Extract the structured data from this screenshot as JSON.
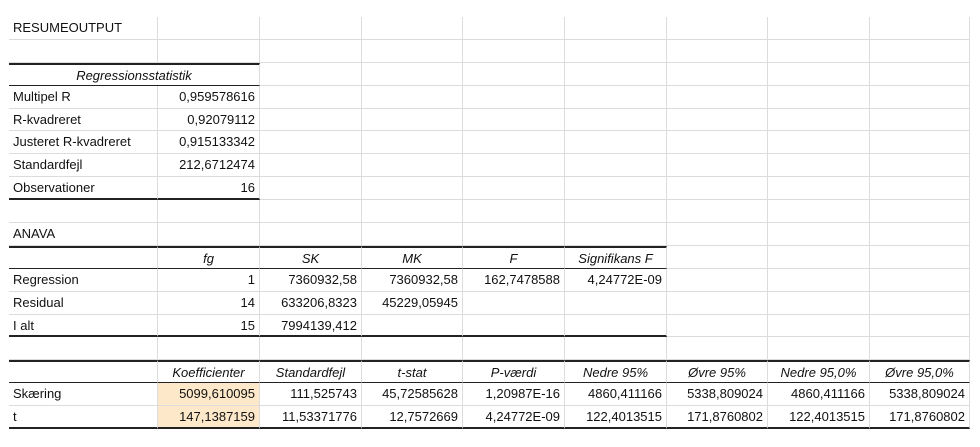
{
  "rows": [
    [
      "RESUMEOUTPUT",
      "",
      "",
      "",
      "",
      "",
      "",
      "",
      ""
    ],
    [
      "",
      "",
      "",
      "",
      "",
      "",
      "",
      "",
      ""
    ],
    [
      "Regressionsstatistik",
      "",
      "",
      "",
      "",
      "",
      "",
      "",
      ""
    ],
    [
      "Multipel R",
      "0,959578616",
      "",
      "",
      "",
      "",
      "",
      "",
      ""
    ],
    [
      "R-kvadreret",
      "0,92079112",
      "",
      "",
      "",
      "",
      "",
      "",
      ""
    ],
    [
      "Justeret R-kvadreret",
      "0,915133342",
      "",
      "",
      "",
      "",
      "",
      "",
      ""
    ],
    [
      "Standardfejl",
      "212,6712474",
      "",
      "",
      "",
      "",
      "",
      "",
      ""
    ],
    [
      "Observationer",
      "16",
      "",
      "",
      "",
      "",
      "",
      "",
      ""
    ],
    [
      "",
      "",
      "",
      "",
      "",
      "",
      "",
      "",
      ""
    ],
    [
      "ANAVA",
      "",
      "",
      "",
      "",
      "",
      "",
      "",
      ""
    ],
    [
      "",
      "fg",
      "SK",
      "MK",
      "F",
      "Signifikans F",
      "",
      "",
      ""
    ],
    [
      "Regression",
      "1",
      "7360932,58",
      "7360932,58",
      "162,7478588",
      "4,24772E-09",
      "",
      "",
      ""
    ],
    [
      "Residual",
      "14",
      "633206,8323",
      "45229,05945",
      "",
      "",
      "",
      "",
      ""
    ],
    [
      "I alt",
      "15",
      "7994139,412",
      "",
      "",
      "",
      "",
      "",
      ""
    ],
    [
      "",
      "",
      "",
      "",
      "",
      "",
      "",
      "",
      ""
    ],
    [
      "",
      "Koefficienter",
      "Standardfejl",
      "t-stat",
      "P-værdi",
      "Nedre 95%",
      "Øvre 95%",
      "Nedre 95,0%",
      "Øvre 95,0%"
    ],
    [
      "Skæring",
      "5099,610095",
      "111,525743",
      "45,72585628",
      "1,20987E-16",
      "4860,411166",
      "5338,809024",
      "4860,411166",
      "5338,809024"
    ],
    [
      "t",
      "147,1387159",
      "11,53371776",
      "12,7572669",
      "4,24772E-09",
      "122,4013515",
      "171,8760802",
      "122,4013515",
      "171,8760802"
    ]
  ],
  "highlight_color": "#fde9c9"
}
